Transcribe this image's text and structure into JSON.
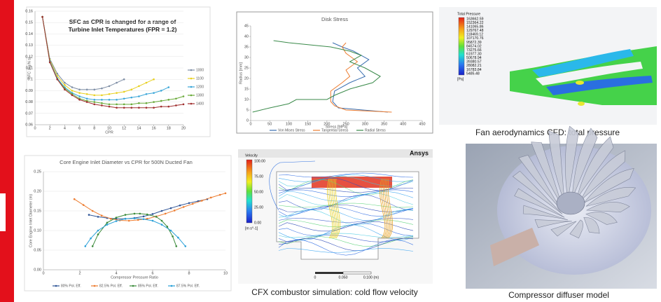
{
  "chart_data": [
    {
      "type": "line",
      "title": "SFC as CPR is changed for a range of Turbine Inlet Temperatures (FPR = 1.2)",
      "x_label": "CPR",
      "y_label": "SFC (kg/N s)",
      "x": [
        1,
        2,
        3,
        4,
        5,
        6,
        7,
        8,
        9,
        10,
        11,
        12,
        13,
        14,
        15,
        16,
        17,
        18,
        19,
        20
      ],
      "series": [
        {
          "name": "1000",
          "color": "#7f8fa6",
          "values": [
            0.155,
            0.118,
            0.105,
            0.097,
            0.093,
            0.091,
            0.091,
            0.091,
            0.092,
            0.094,
            0.097,
            0.1,
            null,
            null,
            null,
            null,
            null,
            null,
            null,
            null
          ]
        },
        {
          "name": "1100",
          "color": "#e8d020",
          "values": [
            0.155,
            0.117,
            0.103,
            0.095,
            0.09,
            0.088,
            0.087,
            0.086,
            0.086,
            0.087,
            0.088,
            0.089,
            0.091,
            0.094,
            0.097,
            0.1,
            null,
            null,
            null,
            null
          ]
        },
        {
          "name": "1200",
          "color": "#3aa6d8",
          "values": [
            0.155,
            0.116,
            0.101,
            0.093,
            0.088,
            0.085,
            0.083,
            0.082,
            0.082,
            0.082,
            0.082,
            0.083,
            0.084,
            0.085,
            0.087,
            0.088,
            0.09,
            0.093,
            null,
            null
          ]
        },
        {
          "name": "1300",
          "color": "#6aaa3a",
          "values": [
            0.155,
            0.115,
            0.1,
            0.092,
            0.087,
            0.083,
            0.081,
            0.08,
            0.079,
            0.078,
            0.078,
            0.078,
            0.078,
            0.079,
            0.079,
            0.08,
            0.081,
            0.082,
            0.083,
            0.085
          ]
        },
        {
          "name": "1400",
          "color": "#a03030",
          "values": [
            0.155,
            0.115,
            0.1,
            0.091,
            0.086,
            0.082,
            0.08,
            0.078,
            0.077,
            0.076,
            0.075,
            0.075,
            0.075,
            0.075,
            0.075,
            0.075,
            0.076,
            0.076,
            0.077,
            0.078
          ]
        }
      ],
      "xlim": [
        0,
        20
      ],
      "xticks": [
        0,
        2,
        4,
        6,
        8,
        10,
        12,
        14,
        16,
        18,
        20
      ],
      "ylim": [
        0.06,
        0.16
      ],
      "yticks": [
        0.06,
        0.07,
        0.08,
        0.09,
        0.1,
        0.11,
        0.12,
        0.13,
        0.14,
        0.15,
        0.16
      ],
      "grid": true,
      "legend": "right",
      "markers": true
    },
    {
      "type": "line",
      "title": "Disk Stress",
      "x_label": "Stress [MPa]",
      "y_label": "Radius [mm]",
      "series": [
        {
          "name": "Von Mises Stress",
          "color": "#3a6fb0",
          "x": [
            360,
            230,
            215,
            220,
            260,
            300,
            280,
            310,
            270,
            240,
            215
          ],
          "values": [
            4,
            6,
            9,
            14,
            18,
            21,
            25,
            29,
            33,
            35,
            37
          ]
        },
        {
          "name": "Tangential Stress",
          "color": "#ed7d31",
          "x": [
            370,
            250,
            220,
            210,
            210,
            240,
            260,
            250,
            280,
            250,
            240,
            250
          ],
          "values": [
            4,
            5,
            7,
            9,
            14,
            18,
            21,
            24,
            28,
            32,
            35,
            37
          ]
        },
        {
          "name": "Radial Stress",
          "color": "#3a8a4a",
          "x": [
            5,
            50,
            100,
            120,
            200,
            220,
            260,
            320,
            340,
            300,
            260,
            290,
            260,
            210,
            100,
            60
          ],
          "values": [
            4,
            6,
            8,
            10,
            10,
            12,
            15,
            18,
            21,
            25,
            28,
            31,
            33,
            35,
            37,
            38
          ]
        }
      ],
      "xlim": [
        0,
        450
      ],
      "xticks": [
        0,
        50,
        100,
        150,
        200,
        250,
        300,
        350,
        400,
        450
      ],
      "ylim": [
        0,
        45
      ],
      "yticks": [
        0,
        5,
        10,
        15,
        20,
        25,
        30,
        35,
        40,
        45
      ],
      "grid": false,
      "legend": "bottom",
      "markers": false
    },
    {
      "type": "line",
      "title": "Core Engine Inlet Diameter vs CPR for 500N Ducted Fan",
      "x_label": "Compressor Pressure Ratio",
      "y_label": "Core Engine Inlet Diameter (m)",
      "series": [
        {
          "name": "80% Pol. Eff.",
          "color": "#2f5597",
          "x": [
            2.5,
            3,
            3.5,
            4,
            4.5,
            5,
            5.5,
            6,
            6.5,
            7,
            7.5,
            8,
            8.5,
            9
          ],
          "values": [
            0.14,
            0.135,
            0.132,
            0.13,
            0.13,
            0.132,
            0.136,
            0.142,
            0.15,
            0.157,
            0.164,
            0.17,
            0.175,
            0.18
          ]
        },
        {
          "name": "82.5% Pol. Eff.",
          "color": "#ed7d31",
          "x": [
            1.7,
            2.2,
            2.7,
            3.2,
            3.7,
            4.2,
            4.7,
            5.2,
            5.7,
            6.2,
            6.7,
            7.2,
            7.7,
            8.2,
            8.7,
            9.2,
            9.7,
            10
          ],
          "values": [
            0.18,
            0.165,
            0.15,
            0.138,
            0.13,
            0.126,
            0.125,
            0.127,
            0.13,
            0.136,
            0.143,
            0.151,
            0.16,
            0.168,
            0.176,
            0.184,
            0.191,
            0.195
          ]
        },
        {
          "name": "85% Pol. Eff.",
          "color": "#3a8a3a",
          "x": [
            2.7,
            3,
            3.5,
            4,
            4.5,
            5,
            5.3,
            5.7,
            6.2,
            6.5,
            6.8,
            7.1,
            7.3
          ],
          "values": [
            0.06,
            0.09,
            0.12,
            0.133,
            0.14,
            0.143,
            0.143,
            0.141,
            0.135,
            0.125,
            0.11,
            0.085,
            0.06
          ]
        },
        {
          "name": "87.5% Pol. Eff.",
          "color": "#2aa0d8",
          "x": [
            2.3,
            2.6,
            3,
            3.5,
            4,
            4.5,
            5,
            5.5,
            6,
            6.5,
            7,
            7.4,
            7.8
          ],
          "values": [
            0.06,
            0.08,
            0.1,
            0.115,
            0.124,
            0.13,
            0.131,
            0.129,
            0.125,
            0.115,
            0.1,
            0.082,
            0.06
          ]
        }
      ],
      "xlim": [
        0,
        10
      ],
      "xticks": [
        0,
        2,
        4,
        6,
        8,
        10
      ],
      "ylim": [
        0,
        0.25
      ],
      "yticks": [
        {
          "value": 0,
          "label": "0.00"
        },
        {
          "value": 0.05,
          "label": "0.05"
        },
        {
          "value": 0.1,
          "label": "0.10"
        },
        {
          "value": 0.15,
          "label": "0.15"
        },
        {
          "value": 0.2,
          "label": "0.20"
        },
        {
          "value": 0.25,
          "label": "0.25"
        }
      ],
      "grid": true,
      "legend": "bottom",
      "markers": true
    }
  ],
  "panels": {
    "fan": {
      "legend_title": "Total Pressure",
      "legend_labels": [
        "163662.59",
        "152364.22",
        "141065.86",
        "129767.48",
        "118469.12",
        "107170.76",
        "95872.39",
        "84574.02",
        "73275.66",
        "61977.30",
        "50678.94",
        "39380.57",
        "28082.21",
        "16783.84",
        "5485.48"
      ],
      "unit": "[Pa]",
      "caption": "Fan aerodynamics CFD: total pressure"
    },
    "combustor": {
      "brand": "Ansys",
      "legend_title": "Velocity",
      "legend_labels": [
        "100.00",
        "75.00",
        "50.00",
        "25.00",
        "0.00"
      ],
      "unit": "[m s^-1]",
      "scale_labels": [
        "0",
        "0.050",
        "0.100 (m)"
      ],
      "caption": "CFX combustor simulation: cold flow velocity"
    },
    "compressor": {
      "caption": "Compressor diffuser model"
    }
  }
}
